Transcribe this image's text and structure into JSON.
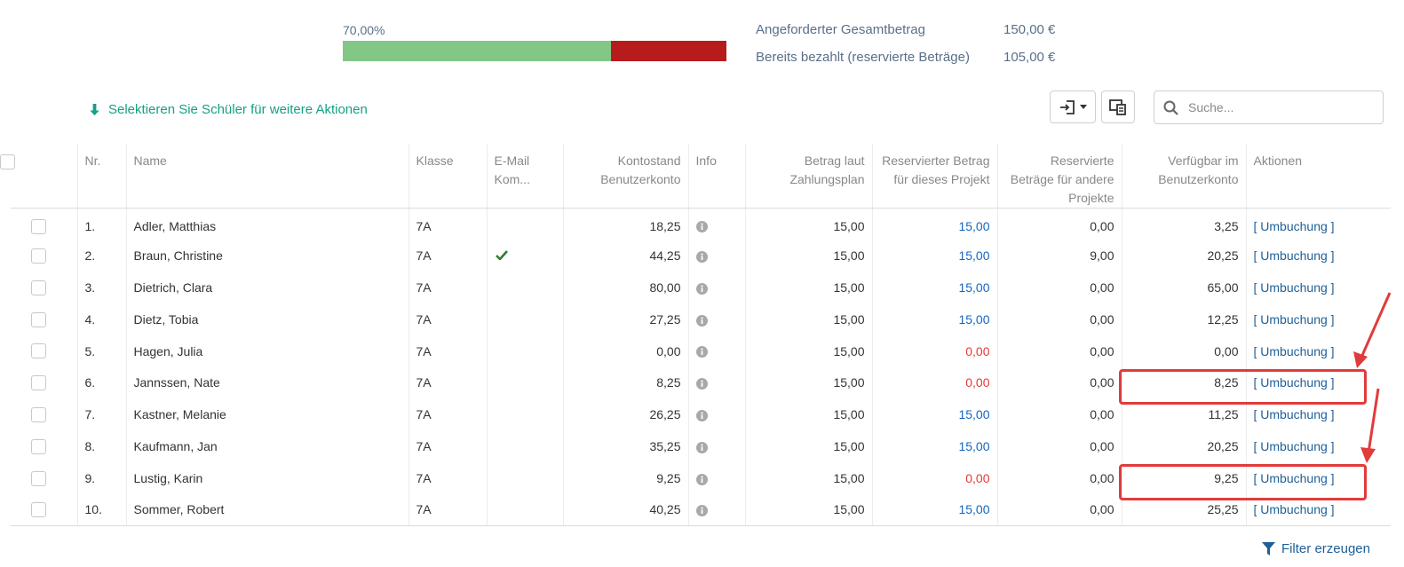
{
  "progress": {
    "percent_label": "70,00%",
    "paid_fraction": 0.7,
    "paid_color": "#82c785",
    "open_color": "#b71c1c"
  },
  "summary": {
    "requested_label": "Angeforderter Gesamtbetrag",
    "requested_value": "150,00 €",
    "paid_label": "Bereits bezahlt (reservierte Beträge)",
    "paid_value": "105,00 €"
  },
  "select_hint": "Selektieren Sie Schüler für weitere Aktionen",
  "search": {
    "placeholder": "Suche..."
  },
  "filter_label": "Filter erzeugen",
  "columns": [
    "Nr.",
    "Name",
    "Klasse",
    "E-Mail Kom...",
    "Kontostand Benutzerkonto",
    "Info",
    "Betrag laut Zahlungsplan",
    "Reservierter Betrag für dieses Projekt",
    "Reservierte Beträge für andere Projekte",
    "Verfügbar im Benutzerkonto",
    "Aktionen"
  ],
  "rows": [
    {
      "nr": "1.",
      "name": "Adler, Matthias",
      "klasse": "7A",
      "email": false,
      "kontostand": "18,25",
      "betrag": "15,00",
      "reserviert": "15,00",
      "reserviert_status": "ok",
      "andere": "0,00",
      "verfuegbar": "3,25",
      "aktion": "[ Umbuchung ]"
    },
    {
      "nr": "2.",
      "name": "Braun, Christine",
      "klasse": "7A",
      "email": true,
      "kontostand": "44,25",
      "betrag": "15,00",
      "reserviert": "15,00",
      "reserviert_status": "ok",
      "andere": "9,00",
      "verfuegbar": "20,25",
      "aktion": "[ Umbuchung ]"
    },
    {
      "nr": "3.",
      "name": "Dietrich, Clara",
      "klasse": "7A",
      "email": false,
      "kontostand": "80,00",
      "betrag": "15,00",
      "reserviert": "15,00",
      "reserviert_status": "ok",
      "andere": "0,00",
      "verfuegbar": "65,00",
      "aktion": "[ Umbuchung ]"
    },
    {
      "nr": "4.",
      "name": "Dietz, Tobia",
      "klasse": "7A",
      "email": false,
      "kontostand": "27,25",
      "betrag": "15,00",
      "reserviert": "15,00",
      "reserviert_status": "ok",
      "andere": "0,00",
      "verfuegbar": "12,25",
      "aktion": "[ Umbuchung ]"
    },
    {
      "nr": "5.",
      "name": "Hagen, Julia",
      "klasse": "7A",
      "email": false,
      "kontostand": "0,00",
      "betrag": "15,00",
      "reserviert": "0,00",
      "reserviert_status": "missing",
      "andere": "0,00",
      "verfuegbar": "0,00",
      "aktion": "[ Umbuchung ]"
    },
    {
      "nr": "6.",
      "name": "Jannssen, Nate",
      "klasse": "7A",
      "email": false,
      "kontostand": "8,25",
      "betrag": "15,00",
      "reserviert": "0,00",
      "reserviert_status": "missing",
      "andere": "0,00",
      "verfuegbar": "8,25",
      "aktion": "[ Umbuchung ]"
    },
    {
      "nr": "7.",
      "name": "Kastner, Melanie",
      "klasse": "7A",
      "email": false,
      "kontostand": "26,25",
      "betrag": "15,00",
      "reserviert": "15,00",
      "reserviert_status": "ok",
      "andere": "0,00",
      "verfuegbar": "11,25",
      "aktion": "[ Umbuchung ]"
    },
    {
      "nr": "8.",
      "name": "Kaufmann, Jan",
      "klasse": "7A",
      "email": false,
      "kontostand": "35,25",
      "betrag": "15,00",
      "reserviert": "15,00",
      "reserviert_status": "ok",
      "andere": "0,00",
      "verfuegbar": "20,25",
      "aktion": "[ Umbuchung ]"
    },
    {
      "nr": "9.",
      "name": "Lustig, Karin",
      "klasse": "7A",
      "email": false,
      "kontostand": "9,25",
      "betrag": "15,00",
      "reserviert": "0,00",
      "reserviert_status": "missing",
      "andere": "0,00",
      "verfuegbar": "9,25",
      "aktion": "[ Umbuchung ]"
    },
    {
      "nr": "10.",
      "name": "Sommer, Robert",
      "klasse": "7A",
      "email": false,
      "kontostand": "40,25",
      "betrag": "15,00",
      "reserviert": "15,00",
      "reserviert_status": "ok",
      "andere": "0,00",
      "verfuegbar": "25,25",
      "aktion": "[ Umbuchung ]"
    }
  ],
  "colors": {
    "accent_teal": "#16a085",
    "link_blue": "#1f5f97",
    "reserved_ok": "#1565c0",
    "reserved_missing": "#e53935",
    "annotation_red": "#e23b3b"
  }
}
